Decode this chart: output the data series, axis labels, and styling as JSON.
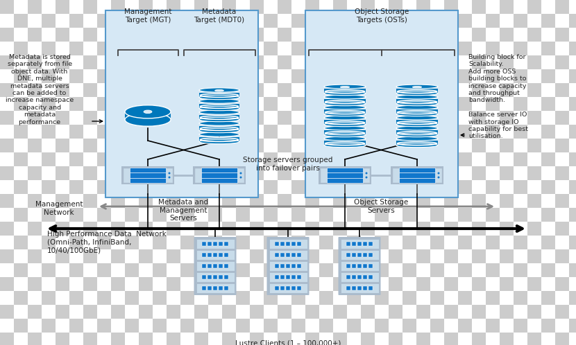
{
  "bg_checker_color1": "#cccccc",
  "bg_checker_color2": "#ffffff",
  "box_color": "#d6e8f5",
  "box_border_color": "#5599cc",
  "disk_color_dark": "#0077bb",
  "disk_color_light": "#44aadd",
  "disk_color_stripe": "#ffffff",
  "server_bg": "#c8dcea",
  "server_border": "#7aaabb",
  "server_slot_color": "#1177cc",
  "server_slot_border": "#0055aa",
  "client_bg": "#c8dcea",
  "client_border": "#7aaabb",
  "client_slot_color": "#1177cc",
  "line_color": "#000000",
  "mgmt_line_color": "#999999",
  "text_color": "#222222",
  "title_left": "Management\nTarget (MGT)",
  "title_left2": "Metadata\nTarget (MDT0)",
  "title_right": "Object Storage\nTargets (OSTs)",
  "label_meta": "Metadata and\nManagement\nServers",
  "label_obj": "Object Storage\nServers",
  "label_mgmt_net": "Management\nNetwork",
  "label_hpn": "High Performance Data  Network\n(Omni-Path, InfiniBand,\n10/40/100GbE)",
  "label_clients": "Lustre Clients (1 – 100,000+)",
  "label_failover": "Storage servers grouped\ninto failover pairs",
  "label_left_note": "Metadata is stored\nseparately from file\nobject data. With\nDNE, multiple\nmetadata servers\ncan be added to\nincrease namespace\ncapacity and\nmetadata\nperformance",
  "label_right_note": "Building block for\nScalability.\nAdd more OSS\nbuilding blocks to\nincrease capacity\nand throughput\nbandwidth.\n\nBalance server IO\nwith storage IO\ncapability for best\nutilisation.",
  "figsize": [
    8.3,
    4.98
  ],
  "dpi": 100
}
